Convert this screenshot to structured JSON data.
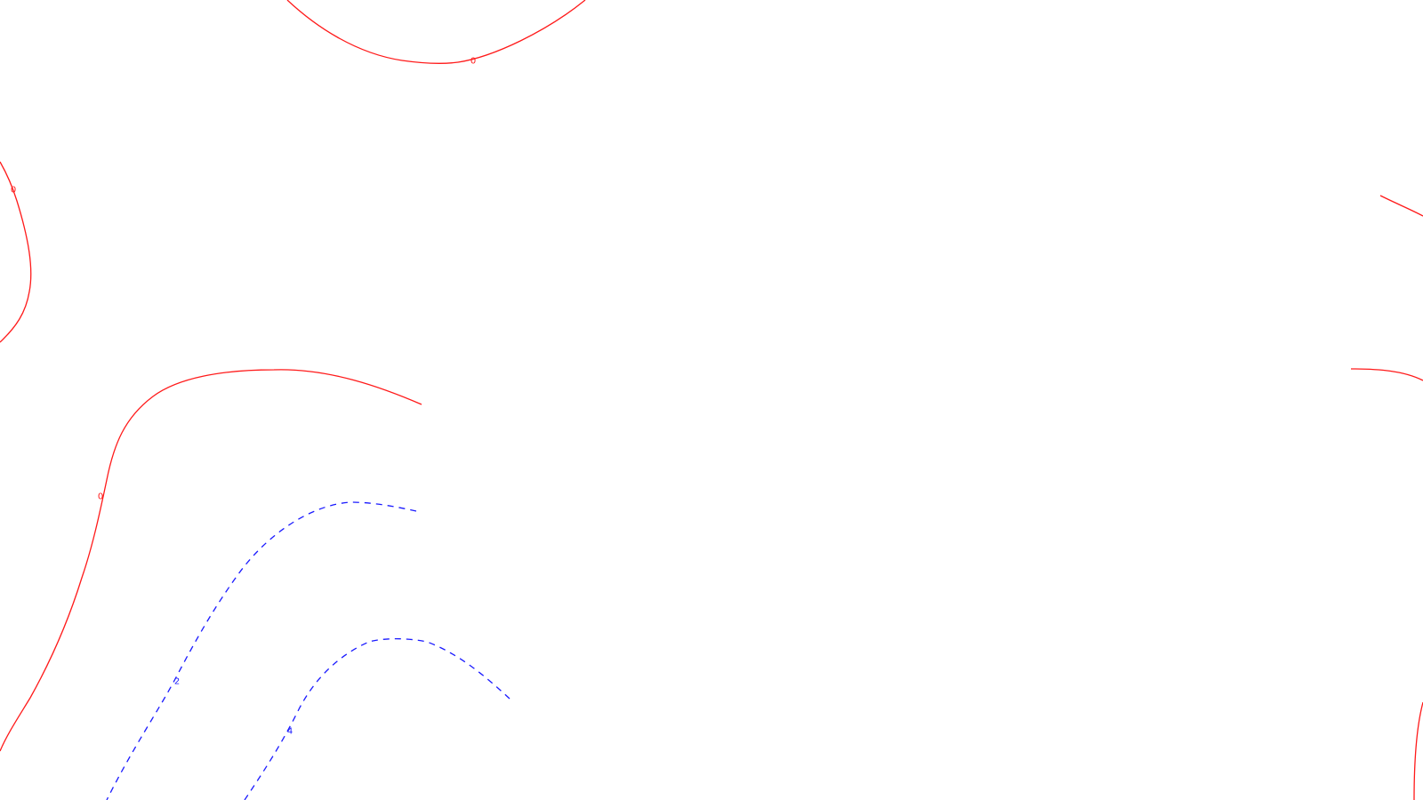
{
  "map": {
    "background_color": "#ffffff",
    "contour_styles": {
      "zero": {
        "color": "#ff1a1a",
        "line": "solid"
      },
      "positive": {
        "color": "#1a1aff",
        "line": "dashed"
      }
    },
    "contours": [
      {
        "id": "top-arc",
        "level": "0",
        "style": "zero",
        "labelled": true
      },
      {
        "id": "left-edge-loop",
        "level": "0",
        "style": "zero",
        "labelled": true
      },
      {
        "id": "left-long-curve",
        "level": "0",
        "style": "zero",
        "labelled": true
      },
      {
        "id": "right-edge-upper",
        "level": "0",
        "style": "zero",
        "labelled": false
      },
      {
        "id": "right-edge-middle",
        "level": "0",
        "style": "zero",
        "labelled": false
      },
      {
        "id": "right-edge-lower",
        "level": "0",
        "style": "zero",
        "labelled": false
      },
      {
        "id": "dashed-2",
        "level": "2",
        "style": "positive",
        "labelled": true
      },
      {
        "id": "dashed-4",
        "level": "4",
        "style": "positive",
        "labelled": true
      }
    ]
  }
}
